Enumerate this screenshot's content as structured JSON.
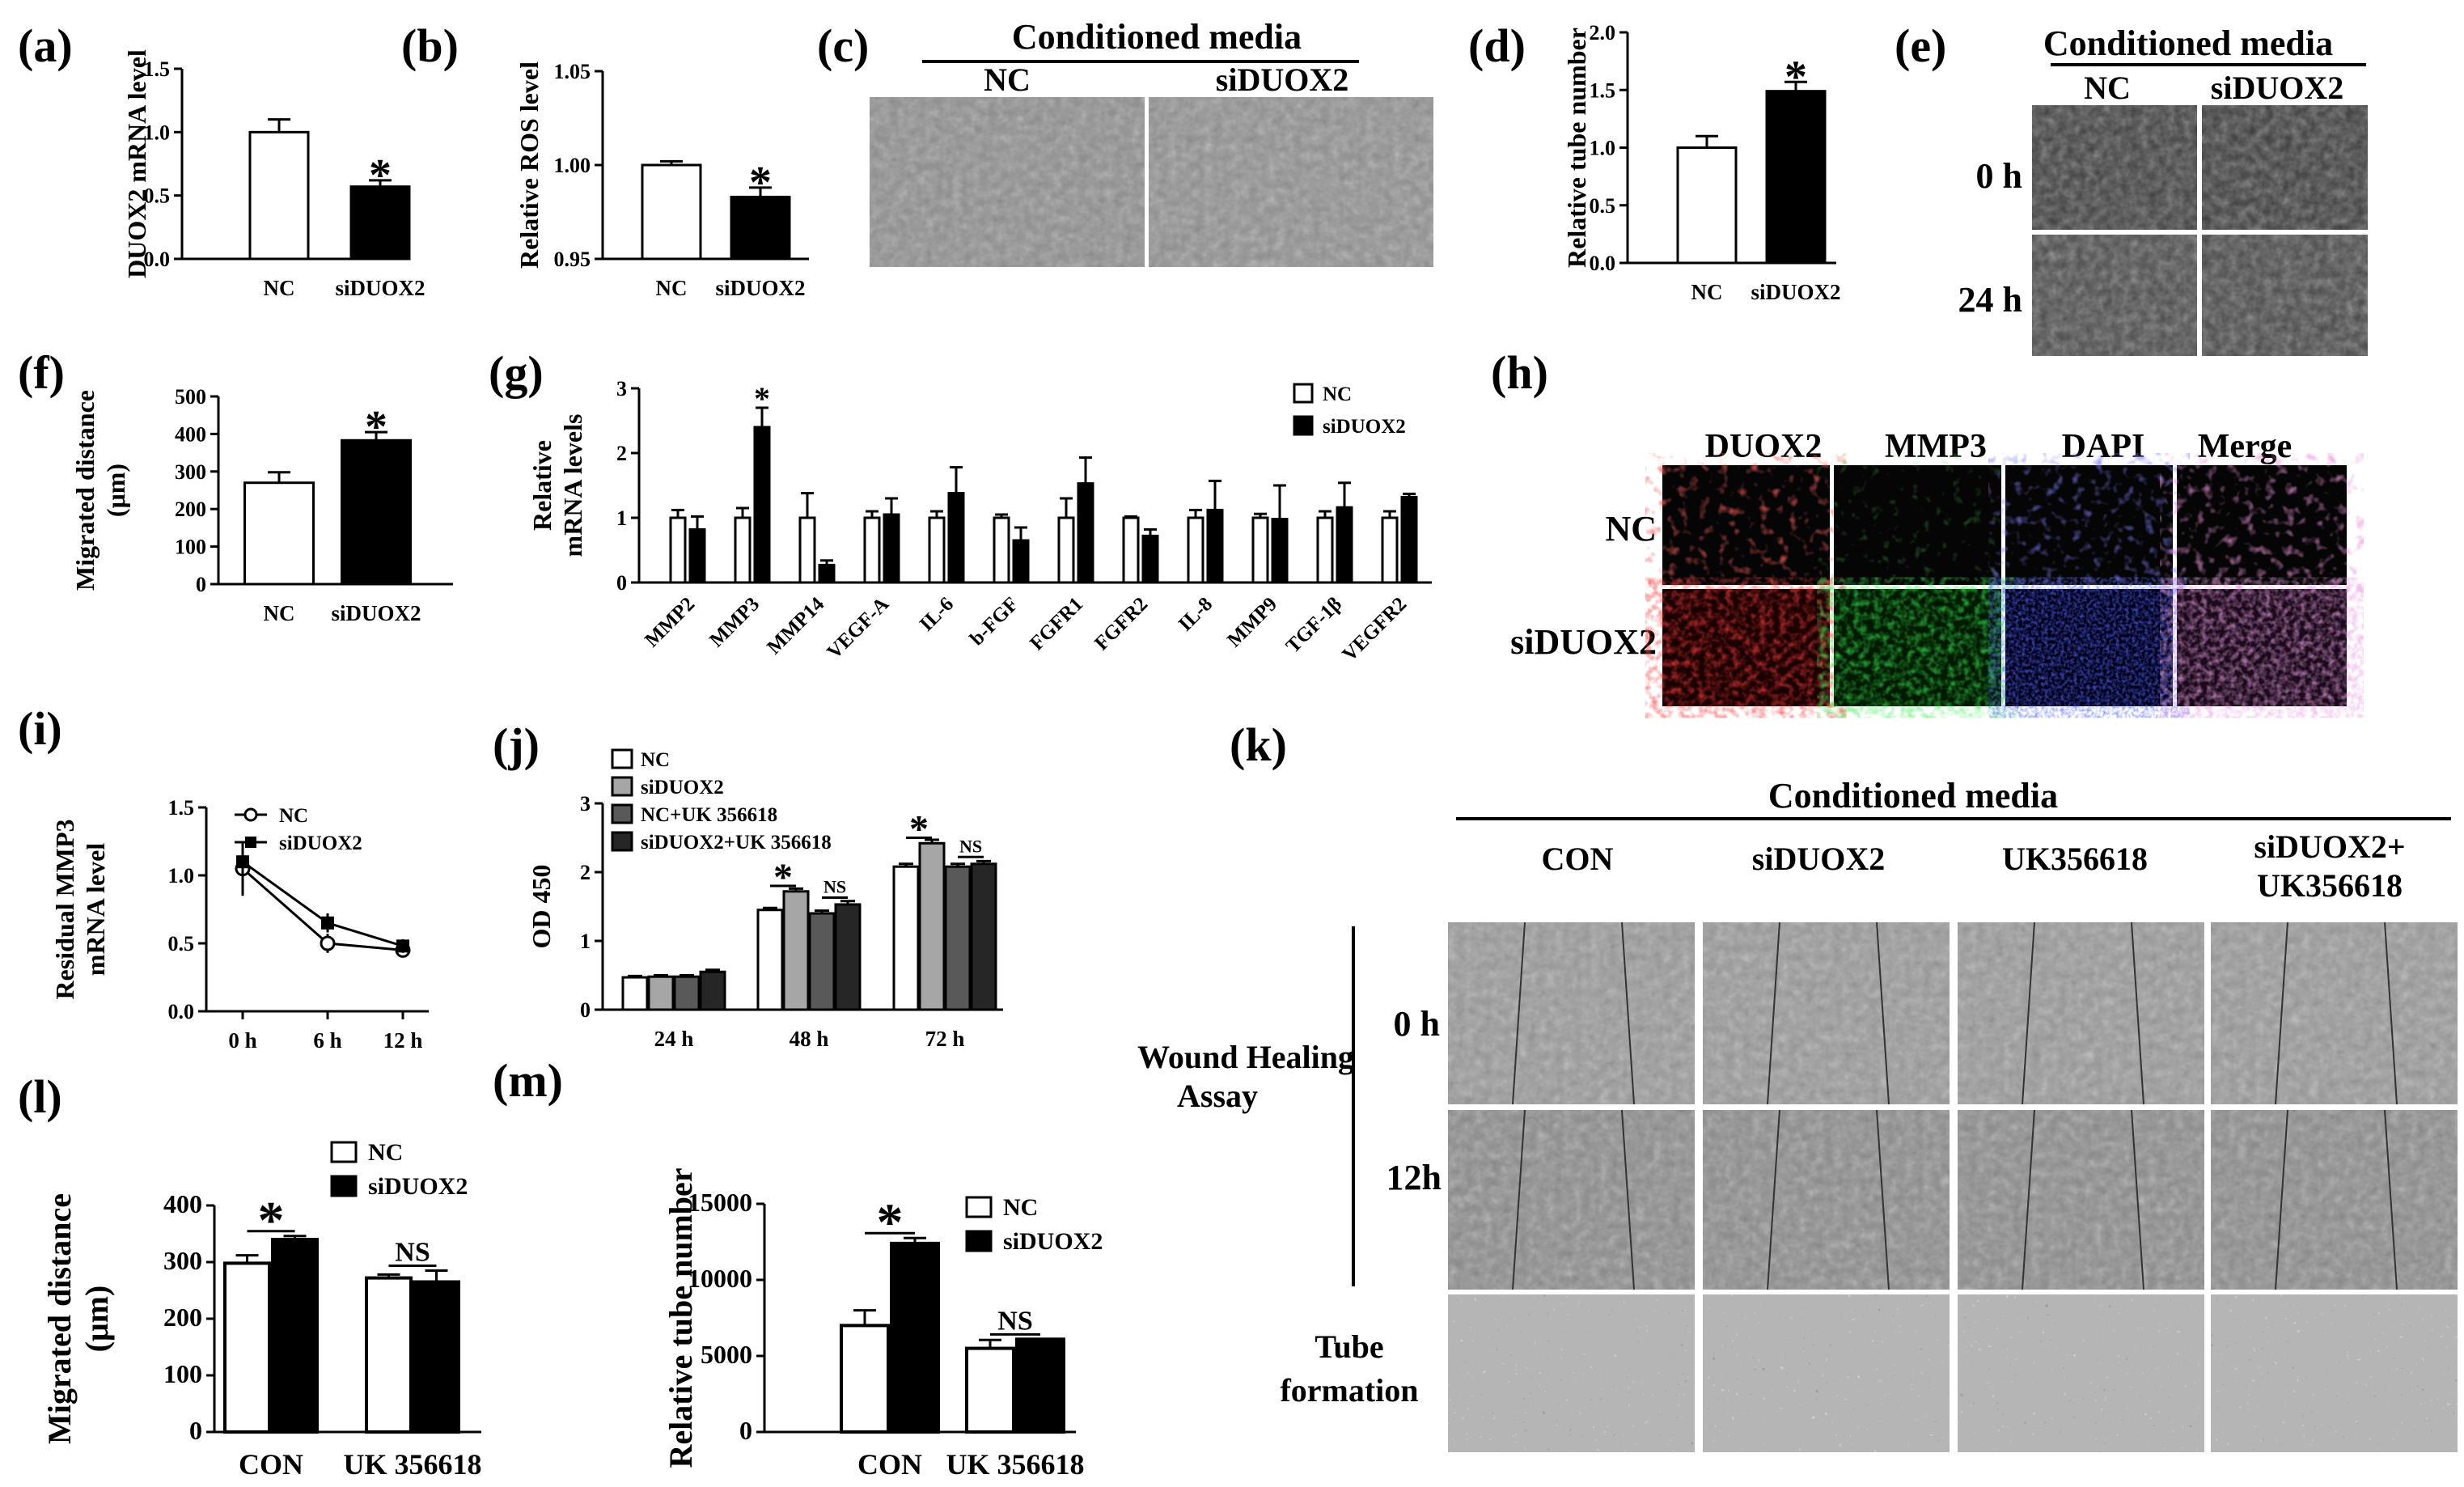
{
  "panels": {
    "a": {
      "label": "(a)"
    },
    "b": {
      "label": "(b)"
    },
    "c": {
      "label": "(c)",
      "header": "Conditioned media",
      "columns": [
        "NC",
        "siDUOX2"
      ]
    },
    "d": {
      "label": "(d)"
    },
    "e": {
      "label": "(e)",
      "header": "Conditioned media",
      "columns": [
        "NC",
        "siDUOX2"
      ],
      "rows": [
        "0 h",
        "24 h"
      ]
    },
    "f": {
      "label": "(f)"
    },
    "g": {
      "label": "(g)"
    },
    "h": {
      "label": "(h)",
      "columns": [
        "DUOX2",
        "MMP3",
        "DAPI",
        "Merge"
      ],
      "rows": [
        "NC",
        "siDUOX2"
      ]
    },
    "i": {
      "label": "(i)"
    },
    "j": {
      "label": "(j)"
    },
    "k": {
      "label": "(k)",
      "header": "Conditioned media",
      "columns": [
        "CON",
        "siDUOX2",
        "UK356618",
        "siDUOX2+\nUK356618"
      ],
      "row_group": "Wound Healing\nAssay",
      "rows": [
        "0 h",
        "12h"
      ],
      "tube_row": "Tube\nformation"
    },
    "l": {
      "label": "(l)"
    },
    "m": {
      "label": "(m)"
    }
  },
  "chart_data": [
    {
      "id": "a",
      "type": "bar",
      "categories": [
        "NC",
        "siDUOX2"
      ],
      "values": [
        1.0,
        0.57
      ],
      "errors": [
        0.1,
        0.05
      ],
      "ylabel": "DUOX2 mRNA level",
      "ylim": [
        0,
        1.5
      ],
      "yticks": [
        0,
        0.5,
        1.0,
        1.5
      ],
      "tick_labels": [
        "0.0",
        "0.5",
        "1.0",
        "1.5"
      ],
      "colors": [
        "#ffffff",
        "#000000"
      ],
      "annotations": [
        {
          "index": 1,
          "text": "*"
        }
      ]
    },
    {
      "id": "b",
      "type": "bar",
      "categories": [
        "NC",
        "siDUOX2"
      ],
      "values": [
        1.0,
        0.983
      ],
      "errors": [
        0.002,
        0.005
      ],
      "ylabel": "Relative ROS level",
      "ylim": [
        0.95,
        1.05
      ],
      "yticks": [
        0.95,
        1.0,
        1.05
      ],
      "tick_labels": [
        "0.95",
        "1.00",
        "1.05"
      ],
      "colors": [
        "#ffffff",
        "#000000"
      ],
      "annotations": [
        {
          "index": 1,
          "text": "*"
        }
      ]
    },
    {
      "id": "d",
      "type": "bar",
      "categories": [
        "NC",
        "siDUOX2"
      ],
      "values": [
        1.0,
        1.49
      ],
      "errors": [
        0.1,
        0.08
      ],
      "ylabel": "Relative tube number",
      "ylim": [
        0,
        2.0
      ],
      "yticks": [
        0,
        0.5,
        1.0,
        1.5,
        2.0
      ],
      "tick_labels": [
        "0.0",
        "0.5",
        "1.0",
        "1.5",
        "2.0"
      ],
      "colors": [
        "#ffffff",
        "#000000"
      ],
      "annotations": [
        {
          "index": 1,
          "text": "*"
        }
      ]
    },
    {
      "id": "f",
      "type": "bar",
      "categories": [
        "NC",
        "siDUOX2"
      ],
      "values": [
        270,
        383
      ],
      "errors": [
        28,
        22
      ],
      "ylabel": "Migrated distance\n(μm)",
      "ylim": [
        0,
        500
      ],
      "yticks": [
        0,
        100,
        200,
        300,
        400,
        500
      ],
      "tick_labels": [
        "0",
        "100",
        "200",
        "300",
        "400",
        "500"
      ],
      "colors": [
        "#ffffff",
        "#000000"
      ],
      "annotations": [
        {
          "index": 1,
          "text": "*"
        }
      ]
    },
    {
      "id": "g",
      "type": "bar",
      "categories": [
        "MMP2",
        "MMP3",
        "MMP14",
        "VEGF-A",
        "IL-6",
        "b-FGF",
        "FGFR1",
        "FGFR2",
        "IL-8",
        "MMP9",
        "TGF-1β",
        "VEGFR2"
      ],
      "series": [
        {
          "name": "NC",
          "values": [
            1.0,
            1.0,
            1.0,
            1.0,
            1.0,
            1.0,
            1.0,
            1.0,
            1.0,
            1.0,
            1.0,
            1.0
          ],
          "errors": [
            0.12,
            0.15,
            0.38,
            0.1,
            0.1,
            0.05,
            0.3,
            0.02,
            0.12,
            0.06,
            0.1,
            0.1
          ],
          "color": "#ffffff"
        },
        {
          "name": "siDUOX2",
          "values": [
            0.82,
            2.4,
            0.27,
            1.05,
            1.38,
            0.65,
            1.53,
            0.72,
            1.12,
            0.98,
            1.16,
            1.32
          ],
          "errors": [
            0.2,
            0.3,
            0.07,
            0.25,
            0.4,
            0.2,
            0.4,
            0.1,
            0.45,
            0.52,
            0.38,
            0.05
          ],
          "color": "#000000"
        }
      ],
      "ylabel": "Relative\nmRNA levels",
      "ylim": [
        0,
        3
      ],
      "yticks": [
        0,
        1,
        2,
        3
      ],
      "tick_labels": [
        "0",
        "1",
        "2",
        "3"
      ],
      "legend": "top-right",
      "annotations": [
        {
          "index": 1,
          "text": "*"
        }
      ]
    },
    {
      "id": "i",
      "type": "line",
      "x": [
        "0 h",
        "6 h",
        "12 h"
      ],
      "series": [
        {
          "name": "NC",
          "values": [
            1.05,
            0.5,
            0.45
          ],
          "errors": [
            0.2,
            0.07,
            0.04
          ],
          "marker": "open-circle"
        },
        {
          "name": "siDUOX2",
          "values": [
            1.1,
            0.65,
            0.48
          ],
          "errors": [
            0.15,
            0.07,
            0.05
          ],
          "marker": "filled-square"
        }
      ],
      "ylabel": "Residual MMP3\nmRNA level",
      "ylim": [
        0,
        1.5
      ],
      "yticks": [
        0,
        0.5,
        1.0,
        1.5
      ],
      "tick_labels": [
        "0.0",
        "0.5",
        "1.0",
        "1.5"
      ],
      "legend": "top-right"
    },
    {
      "id": "j",
      "type": "bar",
      "categories": [
        "24 h",
        "48 h",
        "72 h"
      ],
      "series": [
        {
          "name": "NC",
          "values": [
            0.47,
            1.45,
            2.08
          ],
          "errors": [
            0.02,
            0.03,
            0.04
          ],
          "color": "#ffffff"
        },
        {
          "name": "siDUOX2",
          "values": [
            0.48,
            1.72,
            2.42
          ],
          "errors": [
            0.02,
            0.04,
            0.05
          ],
          "color": "#a6a6a6"
        },
        {
          "name": "NC+UK 356618",
          "values": [
            0.48,
            1.4,
            2.08
          ],
          "errors": [
            0.02,
            0.04,
            0.04
          ],
          "color": "#595959"
        },
        {
          "name": "siDUOX2+UK 356618",
          "values": [
            0.55,
            1.53,
            2.12
          ],
          "errors": [
            0.03,
            0.05,
            0.04
          ],
          "color": "#262626"
        }
      ],
      "ylabel": "OD 450",
      "ylim": [
        0,
        3
      ],
      "yticks": [
        0,
        1,
        2,
        3
      ],
      "tick_labels": [
        "0",
        "1",
        "2",
        "3"
      ],
      "legend": "top-left",
      "annotations": [
        {
          "group": 1,
          "text": "*"
        },
        {
          "group": 1,
          "text": "NS"
        },
        {
          "group": 2,
          "text": "*"
        },
        {
          "group": 2,
          "text": "NS"
        }
      ]
    },
    {
      "id": "l",
      "type": "bar",
      "categories": [
        "CON",
        "UK 356618"
      ],
      "series": [
        {
          "name": "NC",
          "values": [
            298,
            272
          ],
          "errors": [
            14,
            6
          ],
          "color": "#ffffff"
        },
        {
          "name": "siDUOX2",
          "values": [
            340,
            265
          ],
          "errors": [
            6,
            20
          ],
          "color": "#000000"
        }
      ],
      "ylabel": "Migrated distance\n(μm)",
      "ylim": [
        0,
        400
      ],
      "yticks": [
        0,
        100,
        200,
        300,
        400
      ],
      "tick_labels": [
        "0",
        "100",
        "200",
        "300",
        "400"
      ],
      "legend": "top-right",
      "annotations": [
        {
          "group": 0,
          "text": "*"
        },
        {
          "group": 1,
          "text": "NS"
        }
      ]
    },
    {
      "id": "m",
      "type": "bar",
      "categories": [
        "CON",
        "UK 356618"
      ],
      "series": [
        {
          "name": "NC",
          "values": [
            7000,
            5500
          ],
          "errors": [
            1000,
            550
          ],
          "color": "#ffffff"
        },
        {
          "name": "siDUOX2",
          "values": [
            12400,
            6100
          ],
          "errors": [
            350,
            0
          ],
          "color": "#000000"
        }
      ],
      "ylabel": "Relative tube number",
      "ylim": [
        0,
        15000
      ],
      "yticks": [
        0,
        5000,
        10000,
        15000
      ],
      "tick_labels": [
        "0",
        "5000",
        "10000",
        "15000"
      ],
      "legend": "top-right",
      "annotations": [
        {
          "group": 0,
          "text": "*"
        },
        {
          "group": 1,
          "text": "NS"
        }
      ]
    }
  ]
}
